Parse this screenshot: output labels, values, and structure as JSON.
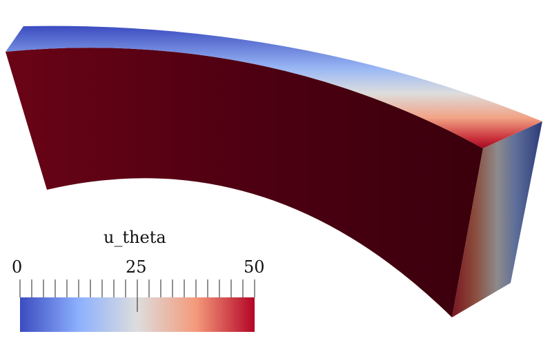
{
  "scene": {
    "field_name": "u_theta",
    "colormap": "cool-to-warm",
    "colors": {
      "low": "#3b4cc0",
      "mid": "#dddddd",
      "high": "#b40426",
      "face_dark": "#4a0010",
      "background": "#ffffff"
    }
  },
  "colorbar": {
    "title": "u_theta",
    "min_label": "0",
    "mid_label": "25",
    "max_label": "50",
    "range": [
      0,
      50
    ],
    "orientation": "horizontal",
    "minor_tick_count": 20
  }
}
